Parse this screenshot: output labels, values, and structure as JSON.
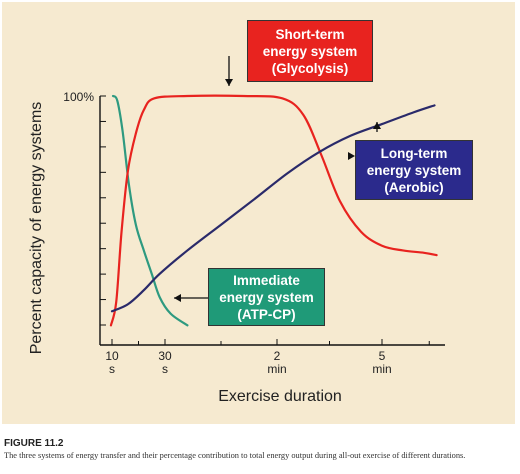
{
  "chart_data": {
    "type": "line",
    "ylabel": "Percent capacity of energy systems",
    "xlabel": "Exercise duration",
    "y_tick_top_label": "100%",
    "x_ticks": [
      {
        "pos": 0,
        "line1": "10",
        "line2": "s"
      },
      {
        "pos": 1,
        "line1": "30",
        "line2": "s"
      },
      {
        "pos": 2,
        "line1": "2",
        "line2": "min"
      },
      {
        "pos": 3,
        "line1": "5",
        "line2": "min"
      }
    ],
    "ylim": [
      0,
      100
    ],
    "series": [
      {
        "name": "Immediate energy system (ATP-CP)",
        "color": "#2e9a80",
        "points": [
          [
            0.02,
            100
          ],
          [
            0.1,
            98
          ],
          [
            0.2,
            85
          ],
          [
            0.32,
            62
          ],
          [
            0.45,
            45
          ],
          [
            0.6,
            34
          ],
          [
            0.75,
            24
          ],
          [
            0.9,
            14
          ],
          [
            1.05,
            7
          ],
          [
            1.2,
            2
          ]
        ]
      },
      {
        "name": "Short-term energy system (Glycolysis)",
        "color": "#e8231f",
        "points": [
          [
            -0.02,
            2
          ],
          [
            0.08,
            12
          ],
          [
            0.18,
            42
          ],
          [
            0.3,
            68
          ],
          [
            0.45,
            84
          ],
          [
            0.6,
            94
          ],
          [
            0.8,
            99
          ],
          [
            1.2,
            100
          ],
          [
            1.7,
            100
          ],
          [
            2.05,
            99
          ],
          [
            2.25,
            92
          ],
          [
            2.42,
            75
          ],
          [
            2.6,
            55
          ],
          [
            2.8,
            42
          ],
          [
            3.0,
            36
          ],
          [
            3.2,
            34
          ],
          [
            3.4,
            33
          ],
          [
            3.52,
            32
          ]
        ]
      },
      {
        "name": "Long-term energy system (Aerobic)",
        "color": "#2a2a6a",
        "points": [
          [
            0,
            8
          ],
          [
            0.3,
            11
          ],
          [
            0.6,
            17
          ],
          [
            0.9,
            24
          ],
          [
            1.2,
            34
          ],
          [
            1.5,
            45
          ],
          [
            1.8,
            56
          ],
          [
            2.1,
            67
          ],
          [
            2.4,
            76
          ],
          [
            2.7,
            83
          ],
          [
            3.0,
            88
          ],
          [
            3.3,
            93
          ],
          [
            3.5,
            96
          ]
        ]
      }
    ]
  },
  "callouts": {
    "short_term": {
      "line1": "Short-term",
      "line2": "energy system",
      "line3": "(Glycolysis)",
      "color": "#e8231f"
    },
    "long_term": {
      "line1": "Long-term",
      "line2": "energy system",
      "line3": "(Aerobic)",
      "color": "#2b2a8c"
    },
    "immediate": {
      "line1": "Immediate",
      "line2": "energy system",
      "line3": "(ATP-CP)",
      "color": "#1f9a78"
    }
  },
  "caption": {
    "title": "FIGURE 11.2",
    "text": "The three systems of energy transfer and their percentage contribution to total energy output during all-out exercise of different durations."
  }
}
